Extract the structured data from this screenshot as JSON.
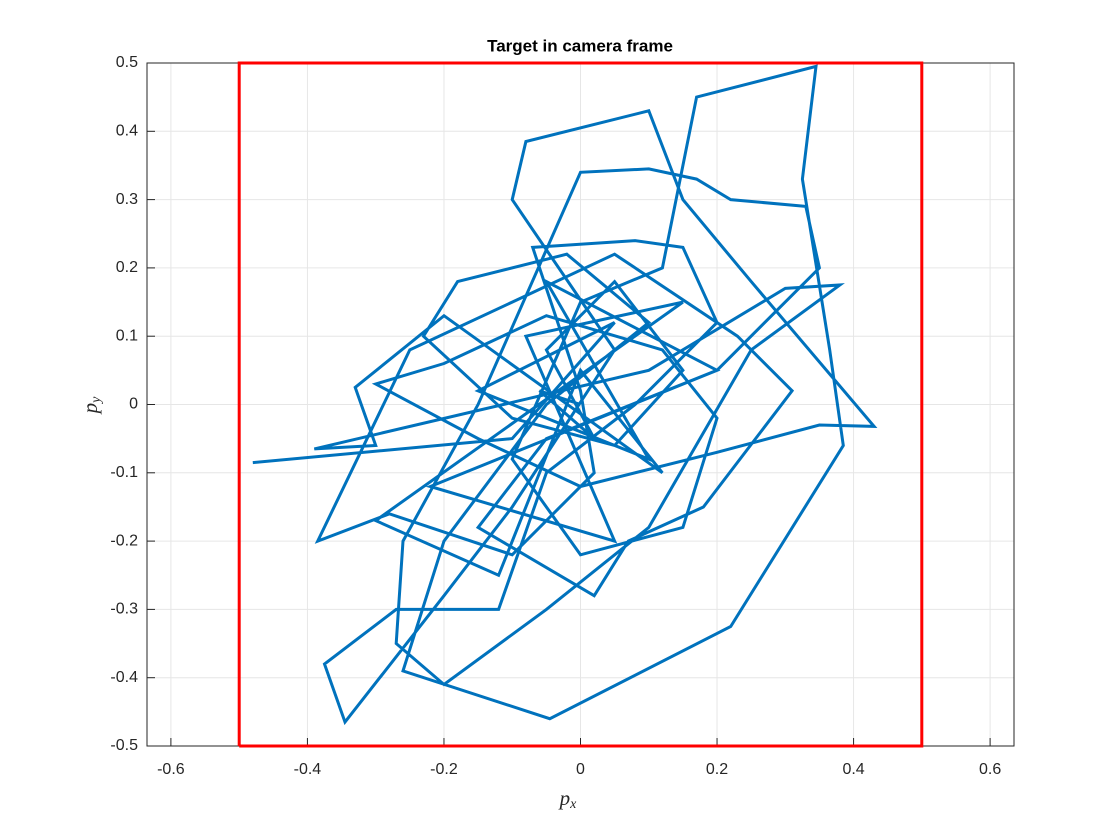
{
  "chart_data": {
    "type": "line",
    "title": "Target in camera frame",
    "xlabel": {
      "text": "p",
      "subscript": "x"
    },
    "ylabel": {
      "text": "p",
      "subscript": "y"
    },
    "xlim": [
      -0.635,
      0.635
    ],
    "ylim": [
      -0.5,
      0.5
    ],
    "xticks": [
      -0.6,
      -0.4,
      -0.2,
      0,
      0.2,
      0.4,
      0.6
    ],
    "yticks": [
      -0.5,
      -0.4,
      -0.3,
      -0.2,
      -0.1,
      0,
      0.1,
      0.2,
      0.3,
      0.4,
      0.5
    ],
    "grid": true,
    "series": [
      {
        "color": "#0072bd",
        "x": [
          -0.48,
          -0.1,
          0.05,
          -0.15,
          0.1,
          -0.05,
          0.2,
          -0.22,
          0.05,
          -0.08,
          0.15,
          -0.3,
          -0.12,
          0.0,
          0.12,
          -0.2,
          -0.33,
          -0.3,
          -0.39,
          0.1,
          0.3,
          0.38,
          0.25,
          0.1,
          -0.05,
          -0.2,
          -0.27,
          -0.26,
          -0.15,
          0.0,
          0.1,
          0.17,
          0.22,
          0.33,
          0.35,
          0.2,
          -0.05,
          -0.15,
          0.02,
          0.07,
          0.18,
          0.31,
          0.23,
          0.05,
          -0.1,
          -0.25,
          -0.385,
          -0.28,
          -0.1,
          0.02,
          0.0,
          -0.07,
          0.08,
          0.15,
          0.2,
          0.08,
          -0.05,
          -0.12,
          -0.27,
          -0.375,
          -0.345,
          -0.2,
          -0.1,
          0.05,
          -0.1,
          -0.08,
          0.1,
          0.15,
          0.25,
          0.43,
          0.35,
          0.2,
          0.0,
          -0.15,
          -0.3,
          -0.2,
          -0.05,
          0.12,
          0.2,
          0.15,
          0.0,
          -0.1,
          0.0,
          0.12,
          0.17,
          0.345,
          0.325,
          0.365,
          0.385,
          0.22,
          -0.045,
          -0.26,
          -0.2,
          -0.05,
          0.1,
          -0.02,
          -0.18,
          -0.23,
          -0.1,
          0.05,
          0.15,
          0.05,
          -0.05,
          0.02,
          -0.06,
          0.0
        ],
        "values": [
          -0.085,
          -0.05,
          0.12,
          0.02,
          -0.08,
          0.18,
          0.05,
          -0.12,
          -0.2,
          0.1,
          0.15,
          -0.17,
          -0.25,
          0.05,
          -0.1,
          0.13,
          0.025,
          -0.06,
          -0.065,
          0.05,
          0.17,
          0.175,
          0.08,
          -0.18,
          -0.3,
          -0.41,
          -0.35,
          -0.2,
          0.0,
          0.34,
          0.345,
          0.33,
          0.3,
          0.29,
          0.2,
          0.05,
          -0.05,
          -0.18,
          -0.28,
          -0.2,
          -0.15,
          0.02,
          0.1,
          0.22,
          0.15,
          0.08,
          -0.2,
          -0.16,
          -0.22,
          -0.1,
          0.02,
          0.23,
          0.24,
          0.23,
          0.12,
          0.0,
          -0.1,
          -0.3,
          -0.3,
          -0.38,
          -0.465,
          -0.28,
          -0.15,
          0.08,
          0.3,
          0.385,
          0.43,
          0.3,
          0.18,
          -0.032,
          -0.03,
          -0.07,
          -0.12,
          -0.05,
          0.03,
          0.06,
          0.13,
          0.08,
          -0.02,
          -0.18,
          -0.22,
          -0.08,
          0.15,
          0.2,
          0.45,
          0.495,
          0.33,
          0.08,
          -0.06,
          -0.325,
          -0.46,
          -0.39,
          -0.2,
          0.0,
          0.12,
          0.22,
          0.18,
          0.1,
          -0.02,
          -0.06,
          0.05,
          0.18,
          0.08,
          -0.05,
          0.02,
          0.0
        ]
      },
      {
        "color": "#ff0000",
        "x": [
          -0.5,
          0.5,
          0.5,
          -0.5,
          -0.5
        ],
        "values": [
          -0.5,
          -0.5,
          0.5,
          0.5,
          -0.5
        ]
      }
    ]
  }
}
